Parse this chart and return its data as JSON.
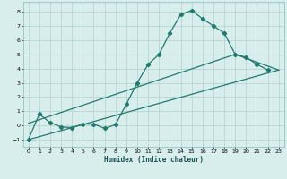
{
  "title": "",
  "xlabel": "Humidex (Indice chaleur)",
  "xlim": [
    -0.5,
    23.5
  ],
  "ylim": [
    -1.5,
    8.7
  ],
  "yticks": [
    -1,
    0,
    1,
    2,
    3,
    4,
    5,
    6,
    7,
    8
  ],
  "xticks": [
    0,
    1,
    2,
    3,
    4,
    5,
    6,
    7,
    8,
    9,
    10,
    11,
    12,
    13,
    14,
    15,
    16,
    17,
    18,
    19,
    20,
    21,
    22,
    23
  ],
  "bg_color": "#d8eeed",
  "grid_color": "#b8d4d2",
  "line_color": "#217a6e",
  "line_width": 0.9,
  "marker": "D",
  "marker_size": 2.2,
  "series1_x": [
    0,
    1,
    2,
    3,
    4,
    5,
    6,
    7,
    8,
    9,
    10,
    11,
    12,
    13,
    14,
    15,
    16,
    17,
    18,
    19,
    20,
    21,
    22
  ],
  "series1_y": [
    -1.0,
    0.8,
    0.2,
    -0.1,
    -0.15,
    0.1,
    0.1,
    -0.2,
    0.05,
    1.5,
    3.0,
    4.3,
    5.0,
    6.5,
    7.8,
    8.1,
    7.5,
    7.0,
    6.5,
    5.0,
    4.8,
    4.3,
    3.9
  ],
  "series2_x": [
    0,
    23
  ],
  "series2_y": [
    -1.0,
    3.9
  ],
  "series3_x": [
    0,
    19,
    23
  ],
  "series3_y": [
    0.15,
    5.0,
    3.9
  ]
}
